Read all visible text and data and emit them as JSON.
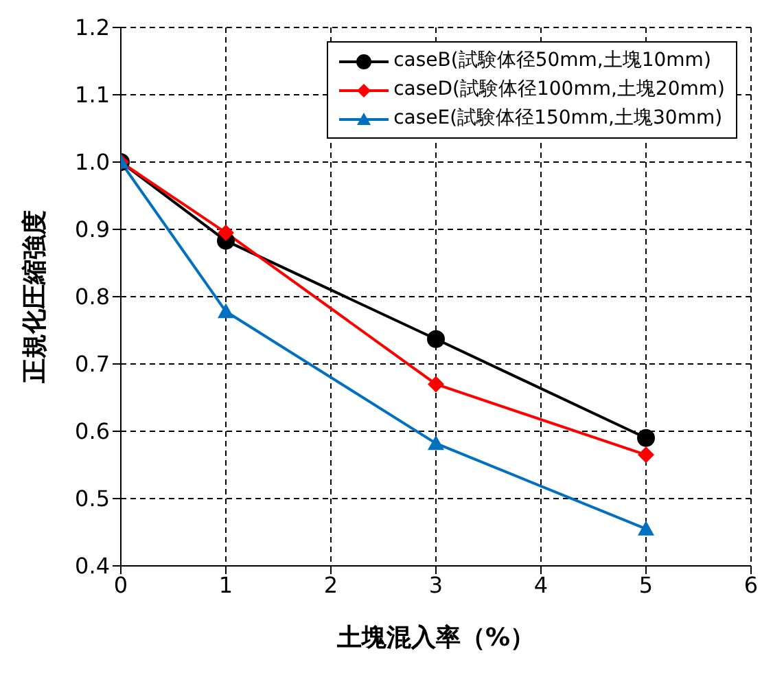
{
  "chart_data": {
    "type": "line",
    "xlabel": "土塊混入率（%）",
    "ylabel": "正規化圧縮強度",
    "x": [
      0,
      1,
      3,
      5
    ],
    "series": [
      {
        "name": "caseB(試験体径50mm,土塊10mm)",
        "color": "#000000",
        "marker": "circle",
        "values": [
          1.0,
          0.883,
          0.737,
          0.59
        ]
      },
      {
        "name": "caseD(試験体径100mm,土塊20mm)",
        "color": "#ff0000",
        "marker": "diamond",
        "values": [
          1.0,
          0.895,
          0.67,
          0.565
        ]
      },
      {
        "name": "caseE(試験体径150mm,土塊30mm)",
        "color": "#0070c0",
        "marker": "triangle",
        "values": [
          1.0,
          0.778,
          0.582,
          0.455
        ]
      }
    ],
    "xlim": [
      0,
      6
    ],
    "xticks": [
      0,
      1,
      2,
      3,
      4,
      5,
      6
    ],
    "ylim": [
      0.4,
      1.2
    ],
    "yticks": [
      0.4,
      0.5,
      0.6,
      0.7,
      0.8,
      0.9,
      {
        "value": 1,
        "label": "1.0"
      },
      1.1,
      1.2
    ],
    "grid": true,
    "legend": "top right",
    "line_style": "solid"
  }
}
